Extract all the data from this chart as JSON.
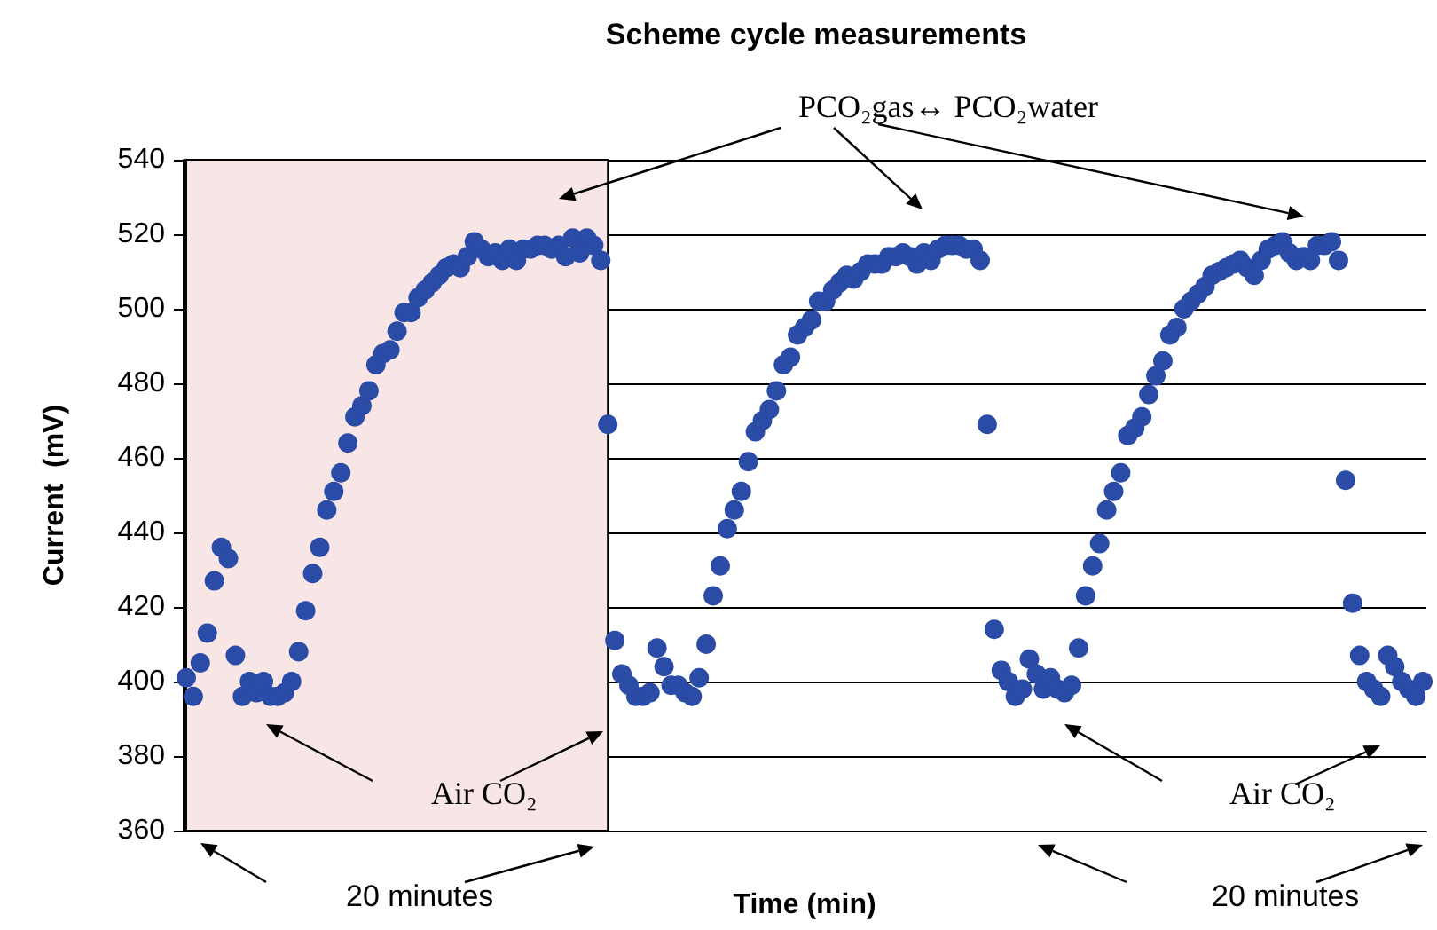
{
  "chart_data": {
    "type": "scatter",
    "title": "Scheme cycle measurements",
    "xlabel": "Time (min)",
    "ylabel": "Current  (mV)",
    "categories": [
      null,
      null,
      null,
      null,
      null,
      null,
      null,
      null,
      null,
      null,
      null,
      null,
      null,
      null,
      null,
      null,
      null,
      null,
      null,
      null,
      null,
      null,
      null,
      null,
      null,
      null,
      null,
      null,
      null,
      null,
      null,
      null,
      null,
      null,
      null,
      null,
      null,
      null,
      null,
      null,
      null,
      null,
      null,
      null,
      null,
      null,
      null,
      null,
      null,
      null,
      null,
      null,
      null,
      null,
      null,
      null,
      null,
      null,
      null,
      null,
      null,
      null,
      null,
      null,
      null,
      null,
      null,
      null,
      null,
      null,
      null,
      null,
      null,
      null,
      null,
      null,
      null,
      null,
      null,
      null,
      null,
      null,
      null,
      null,
      null,
      null,
      null,
      null,
      null,
      null,
      null,
      null,
      null,
      null,
      null,
      null,
      null,
      null,
      null,
      null,
      null,
      null,
      null,
      null,
      null,
      null,
      null,
      null,
      null,
      null,
      null,
      null,
      null,
      null,
      null,
      null,
      null,
      null,
      null,
      null,
      null,
      null,
      null,
      null,
      null,
      null,
      null,
      null,
      null,
      null,
      null,
      null,
      null,
      null,
      null,
      null,
      null,
      null,
      null,
      null,
      null,
      null,
      null,
      null,
      null,
      null,
      null,
      null,
      null,
      null,
      null,
      null,
      null,
      null,
      null,
      null,
      null,
      null,
      null,
      null,
      null,
      null,
      null,
      null,
      null,
      null,
      null,
      null,
      null,
      null,
      null,
      null,
      null,
      null,
      null,
      null,
      null
    ],
    "series": [
      {
        "color": "#2a4ba6",
        "values": [
          401,
          396,
          405,
          413,
          427,
          436,
          433,
          407,
          396,
          400,
          397,
          400,
          396,
          396,
          397,
          400,
          408,
          419,
          429,
          436,
          446,
          451,
          456,
          464,
          471,
          474,
          478,
          485,
          488,
          489,
          494,
          499,
          499,
          503,
          505,
          507,
          509,
          511,
          512,
          511,
          514,
          518,
          516,
          514,
          515,
          513,
          516,
          513,
          516,
          516,
          517,
          517,
          516,
          517,
          514,
          519,
          515,
          519,
          517,
          513,
          469,
          411,
          402,
          399,
          396,
          396,
          397,
          409,
          404,
          399,
          399,
          397,
          396,
          401,
          410,
          423,
          431,
          441,
          446,
          451,
          459,
          467,
          470,
          473,
          478,
          485,
          487,
          493,
          495,
          497,
          502,
          502,
          505,
          507,
          509,
          508,
          510,
          512,
          512,
          512,
          514,
          514,
          515,
          514,
          512,
          515,
          513,
          516,
          517,
          517,
          517,
          516,
          516,
          513,
          469,
          414,
          403,
          400,
          396,
          398,
          406,
          402,
          398,
          401,
          398,
          397,
          399,
          409,
          423,
          431,
          437,
          446,
          451,
          456,
          466,
          468,
          471,
          477,
          482,
          486,
          493,
          495,
          500,
          502,
          504,
          506,
          509,
          510,
          511,
          512,
          513,
          511,
          509,
          513,
          516,
          517,
          518,
          515,
          513,
          514,
          513,
          517,
          517,
          518,
          513,
          454,
          421,
          407,
          400,
          398,
          396,
          407,
          404,
          400,
          398,
          396,
          400
        ]
      }
    ],
    "ylim": [
      360,
      540
    ],
    "yticks": [
      360,
      380,
      400,
      420,
      440,
      460,
      480,
      500,
      520,
      540
    ],
    "grid": "y",
    "marker": "circle",
    "annotations": [
      "PCO₂gas↔ PCO₂water",
      "Air CO₂",
      "Air CO₂",
      "20 minutes",
      "20 minutes"
    ]
  }
}
